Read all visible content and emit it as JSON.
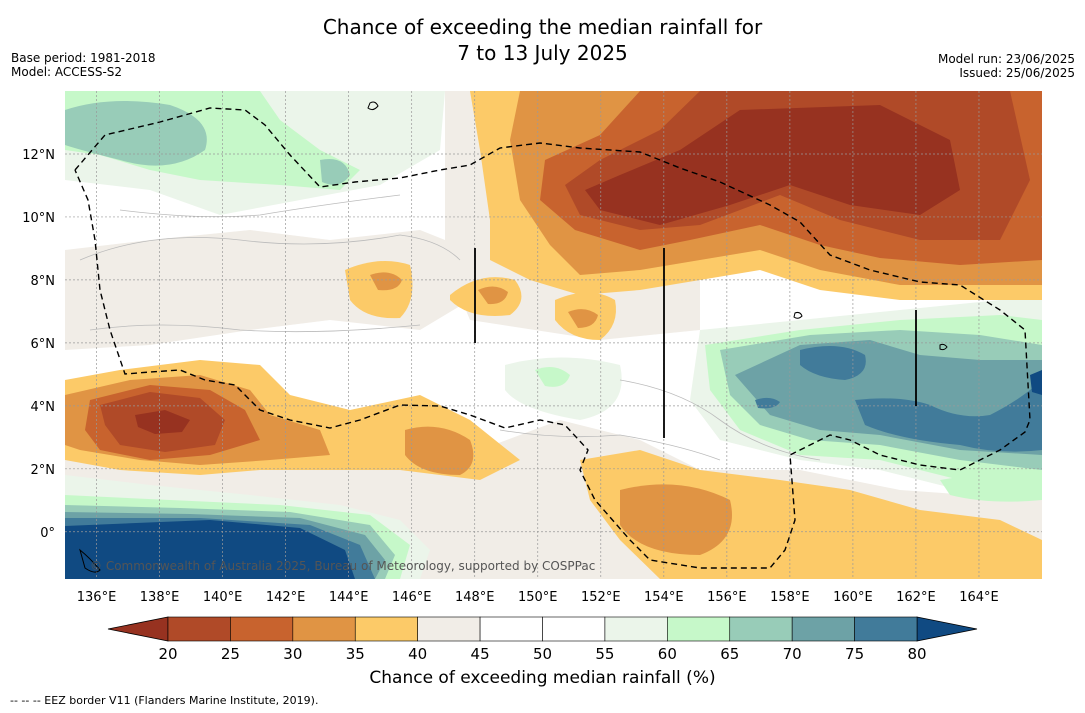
{
  "title": {
    "line1": "Chance of exceeding the median rainfall for",
    "line2": "7 to 13 July 2025"
  },
  "meta_left": {
    "base_period": "Base period: 1981-2018",
    "model": "Model: ACCESS-S2"
  },
  "meta_right": {
    "model_run": "Model run: 23/06/2025",
    "issued": "Issued: 25/06/2025"
  },
  "map": {
    "lon_range": [
      135,
      166
    ],
    "lat_range": [
      -1.5,
      14
    ],
    "lon_ticks": [
      136,
      138,
      140,
      142,
      144,
      146,
      148,
      150,
      152,
      154,
      156,
      158,
      160,
      162,
      164
    ],
    "lon_tick_labels": [
      "136°E",
      "138°E",
      "140°E",
      "142°E",
      "144°E",
      "146°E",
      "148°E",
      "150°E",
      "152°E",
      "154°E",
      "156°E",
      "158°E",
      "160°E",
      "162°E",
      "164°E"
    ],
    "lat_ticks": [
      0,
      2,
      4,
      6,
      8,
      10,
      12
    ],
    "lat_tick_labels": [
      "0°",
      "2°N",
      "4°N",
      "6°N",
      "8°N",
      "10°N",
      "12°N"
    ],
    "gridlines": true,
    "copyright": "© Commonwealth of Australia 2025, Bureau of Meteorology, supported by COSPPac"
  },
  "colorbar": {
    "title": "Chance of exceeding median rainfall (%)",
    "ticks": [
      "20",
      "25",
      "30",
      "35",
      "40",
      "45",
      "50",
      "55",
      "60",
      "65",
      "70",
      "75",
      "80"
    ],
    "colors": [
      "#973220",
      "#b04a28",
      "#c8632e",
      "#e09444",
      "#fcca68",
      "#f1ede7",
      "#ffffff",
      "#ffffff",
      "#ebf5ea",
      "#c6f8c9",
      "#98ccb8",
      "#6da2a6",
      "#417b9a"
    ],
    "under_color": "#973220",
    "over_color": "#104a82"
  },
  "footnote": "--  --  -- EEZ border V11 (Flanders Marine Institute, 2019)."
}
